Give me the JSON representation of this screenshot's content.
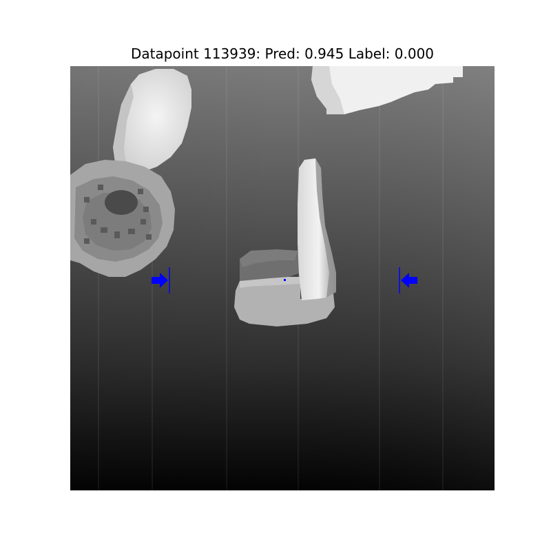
{
  "figure": {
    "title": "Datapoint 113939: Pred: 0.945 Label: 0.000"
  },
  "colors": {
    "marker": "#0000ff",
    "background_top": "#7a7a7a",
    "background_bottom": "#050505",
    "object_light": "#e6e6e6",
    "object_mid": "#a9a9a9"
  },
  "markers": {
    "left_arrow_icon": "arrow-right",
    "right_arrow_icon": "arrow-left"
  }
}
